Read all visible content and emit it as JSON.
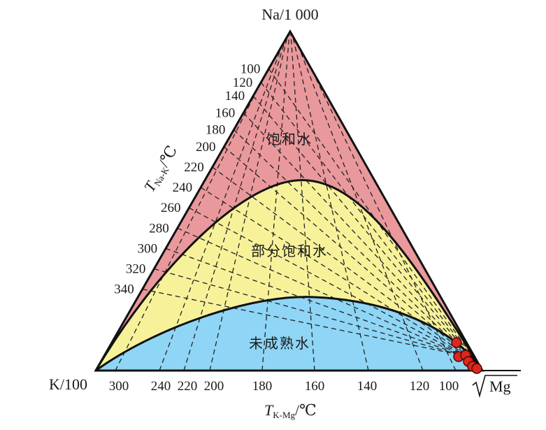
{
  "diagram": {
    "vertices": {
      "top": "Na/1 000",
      "left": "K/100",
      "right": "Mg"
    },
    "sqrt_symbol": "√",
    "zones": {
      "full": "饱和水",
      "partial": "部分饱和水",
      "immature": "未成熟水"
    },
    "colors": {
      "full": "#e9989c",
      "partial": "#f7f29a",
      "immature": "#8fd5f5",
      "sample": "#e0261c"
    },
    "na_k_axis": {
      "title_T": "T",
      "title_sub": "Na-K",
      "title_unit": "/℃",
      "ticks": [
        "100",
        "120",
        "140",
        "160",
        "180",
        "200",
        "220",
        "240",
        "260",
        "280",
        "300",
        "320",
        "340"
      ]
    },
    "k_mg_axis": {
      "title_T": "T",
      "title_sub": "K-Mg",
      "title_unit": "/℃",
      "ticks": [
        "300",
        "240",
        "220",
        "200",
        "180",
        "160",
        "140",
        "120",
        "100"
      ]
    },
    "samples": [
      {
        "id": "s1"
      },
      {
        "id": "s2"
      },
      {
        "id": "s3"
      },
      {
        "id": "s4"
      },
      {
        "id": "s5"
      },
      {
        "id": "s6"
      }
    ]
  }
}
